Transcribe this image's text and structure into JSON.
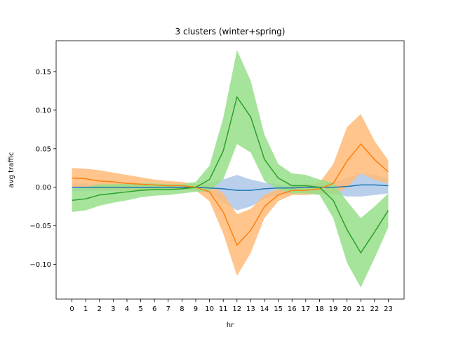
{
  "chart_data": {
    "type": "line",
    "title": "3 clusters (winter+spring)",
    "xlabel": "hr",
    "ylabel": "avg traffic",
    "x": [
      0,
      1,
      2,
      3,
      4,
      5,
      6,
      7,
      8,
      9,
      10,
      11,
      12,
      13,
      14,
      15,
      16,
      17,
      18,
      19,
      20,
      21,
      22,
      23
    ],
    "xlim": [
      -1.15,
      24.15
    ],
    "ylim": [
      -0.145,
      0.19
    ],
    "yticks": [
      -0.1,
      -0.05,
      0.0,
      0.05,
      0.1,
      0.15
    ],
    "ytick_labels": [
      "−0.10",
      "−0.05",
      "0.00",
      "0.05",
      "0.10",
      "0.15"
    ],
    "grid": false,
    "legend": "none",
    "series": [
      {
        "color": "#1f77b4",
        "band_color": "#aec7e8",
        "values": [
          0.0,
          0.0,
          0.0,
          0.0,
          0.0,
          0.0,
          0.0,
          0.0,
          0.0,
          0.0,
          -0.001,
          -0.002,
          -0.004,
          -0.004,
          -0.002,
          -0.001,
          -0.001,
          0.0,
          0.0,
          0.0,
          0.001,
          0.003,
          0.003,
          0.002
        ],
        "lower": [
          -0.005,
          -0.005,
          -0.005,
          -0.005,
          -0.004,
          -0.004,
          -0.003,
          -0.003,
          -0.003,
          -0.003,
          -0.008,
          -0.02,
          -0.03,
          -0.025,
          -0.015,
          -0.01,
          -0.008,
          -0.008,
          -0.008,
          -0.008,
          -0.012,
          -0.012,
          -0.01,
          -0.008
        ],
        "upper": [
          0.005,
          0.005,
          0.005,
          0.005,
          0.004,
          0.004,
          0.003,
          0.003,
          0.003,
          0.003,
          0.006,
          0.01,
          0.016,
          0.01,
          0.006,
          0.004,
          0.003,
          0.003,
          0.004,
          0.006,
          0.012,
          0.018,
          0.016,
          0.012
        ]
      },
      {
        "color": "#ff7f0e",
        "band_color": "#ffbb78",
        "values": [
          0.012,
          0.011,
          0.008,
          0.007,
          0.005,
          0.004,
          0.003,
          0.002,
          0.002,
          0.0,
          -0.006,
          -0.032,
          -0.075,
          -0.056,
          -0.025,
          -0.01,
          -0.004,
          -0.004,
          -0.002,
          0.005,
          0.034,
          0.056,
          0.036,
          0.02
        ],
        "lower": [
          0.0,
          0.0,
          -0.003,
          -0.004,
          -0.005,
          -0.005,
          -0.004,
          -0.003,
          -0.003,
          -0.004,
          -0.018,
          -0.06,
          -0.115,
          -0.085,
          -0.04,
          -0.018,
          -0.01,
          -0.01,
          -0.008,
          -0.01,
          0.0,
          0.018,
          0.01,
          0.005
        ],
        "upper": [
          0.025,
          0.024,
          0.022,
          0.019,
          0.016,
          0.013,
          0.01,
          0.008,
          0.007,
          0.004,
          0.004,
          -0.008,
          -0.035,
          -0.028,
          -0.01,
          -0.002,
          0.002,
          0.003,
          0.006,
          0.03,
          0.078,
          0.095,
          0.06,
          0.035
        ]
      },
      {
        "color": "#2ca02c",
        "band_color": "#98df8a",
        "values": [
          -0.017,
          -0.015,
          -0.01,
          -0.008,
          -0.006,
          -0.004,
          -0.003,
          -0.003,
          -0.002,
          0.0,
          0.01,
          0.047,
          0.117,
          0.091,
          0.036,
          0.012,
          0.002,
          0.002,
          0.0,
          -0.017,
          -0.055,
          -0.085,
          -0.058,
          -0.03
        ],
        "lower": [
          -0.032,
          -0.03,
          -0.024,
          -0.02,
          -0.017,
          -0.013,
          -0.011,
          -0.01,
          -0.008,
          -0.006,
          -0.005,
          0.01,
          0.056,
          0.045,
          0.008,
          -0.003,
          -0.008,
          -0.008,
          -0.01,
          -0.04,
          -0.098,
          -0.13,
          -0.092,
          -0.052
        ],
        "upper": [
          -0.002,
          0.0,
          0.004,
          0.004,
          0.005,
          0.005,
          0.005,
          0.004,
          0.004,
          0.007,
          0.028,
          0.09,
          0.178,
          0.138,
          0.068,
          0.03,
          0.018,
          0.016,
          0.01,
          0.006,
          -0.018,
          -0.04,
          -0.025,
          -0.008
        ]
      }
    ]
  }
}
